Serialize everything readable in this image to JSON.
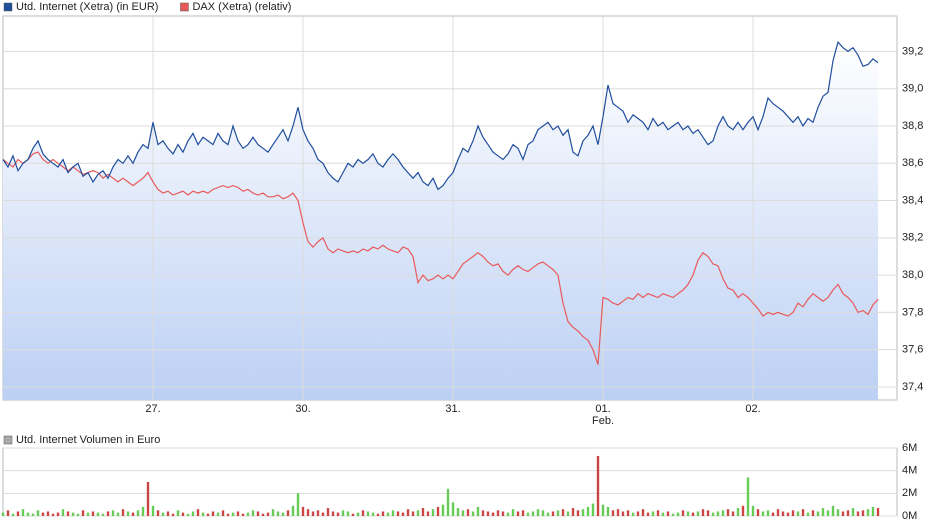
{
  "chart_data": [
    {
      "type": "line",
      "series": [
        {
          "name": "Utd. Internet (Xetra) (in EUR)",
          "color": "#1f4e9c",
          "values": [
            38.62,
            38.58,
            38.64,
            38.56,
            38.6,
            38.62,
            38.68,
            38.72,
            38.65,
            38.62,
            38.6,
            38.58,
            38.62,
            38.55,
            38.58,
            38.6,
            38.53,
            38.55,
            38.5,
            38.54,
            38.56,
            38.52,
            38.58,
            38.62,
            38.6,
            38.64,
            38.6,
            38.66,
            38.7,
            38.68,
            38.82,
            38.7,
            38.72,
            38.68,
            38.65,
            38.7,
            38.66,
            38.72,
            38.76,
            38.7,
            38.74,
            38.72,
            38.7,
            38.76,
            38.72,
            38.7,
            38.8,
            38.72,
            38.68,
            38.7,
            38.74,
            38.7,
            38.68,
            38.66,
            38.7,
            38.74,
            38.78,
            38.72,
            38.8,
            38.9,
            38.78,
            38.72,
            38.68,
            38.62,
            38.6,
            38.55,
            38.52,
            38.5,
            38.55,
            38.6,
            38.58,
            38.62,
            38.6,
            38.62,
            38.65,
            38.6,
            38.58,
            38.62,
            38.65,
            38.62,
            38.58,
            38.55,
            38.52,
            38.55,
            38.5,
            38.48,
            38.52,
            38.46,
            38.48,
            38.52,
            38.55,
            38.62,
            38.68,
            38.66,
            38.72,
            38.8,
            38.74,
            38.7,
            38.66,
            38.64,
            38.62,
            38.65,
            38.7,
            38.68,
            38.62,
            38.7,
            38.72,
            38.78,
            38.8,
            38.82,
            38.78,
            38.8,
            38.75,
            38.78,
            38.66,
            38.64,
            38.72,
            38.75,
            38.8,
            38.7,
            38.85,
            39.02,
            38.92,
            38.9,
            38.88,
            38.82,
            38.86,
            38.84,
            38.82,
            38.78,
            38.84,
            38.8,
            38.82,
            38.78,
            38.8,
            38.82,
            38.78,
            38.8,
            38.76,
            38.78,
            38.74,
            38.7,
            38.72,
            38.8,
            38.85,
            38.8,
            38.78,
            38.82,
            38.78,
            38.82,
            38.85,
            38.78,
            38.85,
            38.95,
            38.92,
            38.9,
            38.88,
            38.85,
            38.82,
            38.85,
            38.8,
            38.84,
            38.82,
            38.9,
            38.96,
            38.98,
            39.15,
            39.25,
            39.22,
            39.2,
            39.22,
            39.18,
            39.12,
            39.13,
            39.16,
            39.14
          ]
        },
        {
          "name": "DAX (Xetra) (relativ)",
          "color": "#e85a5a",
          "values": [
            38.62,
            38.6,
            38.58,
            38.62,
            38.6,
            38.62,
            38.65,
            38.66,
            38.62,
            38.6,
            38.62,
            38.6,
            38.58,
            38.56,
            38.58,
            38.56,
            38.54,
            38.55,
            38.56,
            38.55,
            38.52,
            38.54,
            38.52,
            38.5,
            38.52,
            38.5,
            38.48,
            38.5,
            38.52,
            38.55,
            38.5,
            38.46,
            38.44,
            38.45,
            38.43,
            38.44,
            38.45,
            38.43,
            38.45,
            38.44,
            38.45,
            38.44,
            38.46,
            38.47,
            38.48,
            38.47,
            38.48,
            38.47,
            38.45,
            38.46,
            38.44,
            38.43,
            38.44,
            38.42,
            38.42,
            38.43,
            38.41,
            38.42,
            38.44,
            38.4,
            38.28,
            38.18,
            38.15,
            38.18,
            38.2,
            38.14,
            38.12,
            38.14,
            38.13,
            38.12,
            38.13,
            38.12,
            38.14,
            38.13,
            38.15,
            38.14,
            38.16,
            38.14,
            38.13,
            38.12,
            38.15,
            38.14,
            38.1,
            37.96,
            38.0,
            37.97,
            37.98,
            38.0,
            37.98,
            38.0,
            37.98,
            38.02,
            38.06,
            38.08,
            38.1,
            38.12,
            38.1,
            38.07,
            38.05,
            38.06,
            38.02,
            38.0,
            38.03,
            38.05,
            38.03,
            38.02,
            38.04,
            38.06,
            38.07,
            38.05,
            38.03,
            38.0,
            37.85,
            37.75,
            37.72,
            37.7,
            37.67,
            37.65,
            37.6,
            37.52,
            37.88,
            37.87,
            37.85,
            37.84,
            37.86,
            37.88,
            37.87,
            37.9,
            37.88,
            37.9,
            37.89,
            37.88,
            37.9,
            37.89,
            37.88,
            37.9,
            37.92,
            37.95,
            38.0,
            38.08,
            38.12,
            38.1,
            38.06,
            38.05,
            37.98,
            37.93,
            37.92,
            37.88,
            37.9,
            37.88,
            37.85,
            37.82,
            37.78,
            37.8,
            37.79,
            37.8,
            37.79,
            37.78,
            37.8,
            37.85,
            37.83,
            37.87,
            37.9,
            37.88,
            37.86,
            37.88,
            37.92,
            37.95,
            37.9,
            37.88,
            37.85,
            37.8,
            37.81,
            37.79,
            37.84,
            37.87
          ]
        }
      ],
      "xlim": [
        0,
        178.8
      ],
      "xticks": [
        {
          "value": 30,
          "label": "27."
        },
        {
          "value": 60,
          "label": "30."
        },
        {
          "value": 90,
          "label": "31."
        },
        {
          "value": 120,
          "label": "01.",
          "sublabel": "Feb."
        },
        {
          "value": 150,
          "label": "02."
        }
      ],
      "ylim": [
        37.33,
        39.39
      ],
      "yticks": [
        {
          "value": 37.4,
          "label": "37,4"
        },
        {
          "value": 37.6,
          "label": "37,6"
        },
        {
          "value": 37.8,
          "label": "37,8"
        },
        {
          "value": 38.0,
          "label": "38,0"
        },
        {
          "value": 38.2,
          "label": "38,2"
        },
        {
          "value": 38.4,
          "label": "38,4"
        },
        {
          "value": 38.6,
          "label": "38,6"
        },
        {
          "value": 38.8,
          "label": "38,8"
        },
        {
          "value": 39.0,
          "label": "39,0"
        },
        {
          "value": 39.2,
          "label": "39,2"
        }
      ],
      "grid": true
    },
    {
      "type": "bar",
      "series": [
        {
          "name": "Utd. Internet Volumen in Euro",
          "color": "#aaaaaa",
          "up_color": "#66cc55",
          "down_color": "#cc4444",
          "values": [
            0.3,
            0.5,
            0.2,
            0.4,
            0.6,
            0.3,
            0.2,
            0.5,
            0.3,
            0.4,
            0.2,
            0.3,
            0.6,
            0.4,
            0.3,
            0.2,
            0.5,
            0.3,
            0.4,
            0.3,
            0.2,
            0.4,
            0.5,
            0.3,
            0.6,
            0.4,
            0.3,
            0.5,
            0.8,
            3.0,
            0.9,
            0.5,
            0.3,
            0.4,
            0.2,
            0.5,
            0.3,
            0.2,
            0.4,
            0.6,
            0.3,
            0.2,
            0.4,
            0.3,
            0.5,
            0.2,
            0.3,
            0.4,
            0.2,
            0.3,
            0.5,
            0.4,
            0.2,
            0.3,
            0.6,
            0.4,
            0.3,
            0.5,
            0.9,
            2.0,
            0.8,
            0.6,
            0.4,
            0.5,
            0.3,
            0.7,
            0.4,
            0.3,
            0.5,
            0.4,
            0.2,
            0.3,
            0.5,
            0.4,
            0.3,
            0.2,
            0.4,
            0.3,
            0.5,
            0.4,
            0.3,
            0.6,
            0.4,
            0.5,
            0.7,
            0.4,
            0.6,
            0.8,
            1.0,
            2.4,
            1.2,
            0.7,
            0.5,
            0.6,
            0.4,
            0.8,
            0.5,
            0.4,
            0.3,
            0.5,
            0.4,
            0.3,
            0.6,
            0.4,
            0.5,
            0.3,
            0.4,
            0.6,
            0.5,
            0.3,
            0.4,
            0.5,
            0.6,
            0.4,
            0.7,
            0.5,
            0.6,
            0.8,
            1.1,
            5.3,
            1.0,
            0.8,
            0.5,
            0.6,
            0.4,
            0.5,
            0.3,
            0.4,
            0.6,
            0.3,
            0.4,
            0.5,
            0.3,
            0.4,
            0.2,
            0.3,
            0.5,
            0.4,
            0.3,
            0.4,
            0.6,
            0.5,
            0.3,
            0.4,
            0.5,
            0.6,
            0.4,
            0.7,
            0.9,
            3.4,
            0.9,
            0.6,
            0.4,
            0.5,
            0.3,
            0.6,
            0.4,
            0.3,
            0.5,
            0.4,
            0.6,
            0.3,
            0.5,
            0.4,
            0.7,
            0.5,
            0.9,
            0.6,
            0.4,
            0.5,
            0.7,
            0.4,
            0.5,
            0.6,
            0.8,
            0.7
          ]
        }
      ],
      "xlim": [
        0,
        178.8
      ],
      "ylim": [
        0,
        6
      ],
      "yticks": [
        {
          "value": 0,
          "label": "0M"
        },
        {
          "value": 2,
          "label": "2M"
        },
        {
          "value": 4,
          "label": "4M"
        },
        {
          "value": 6,
          "label": "6M"
        }
      ],
      "grid": true
    }
  ]
}
